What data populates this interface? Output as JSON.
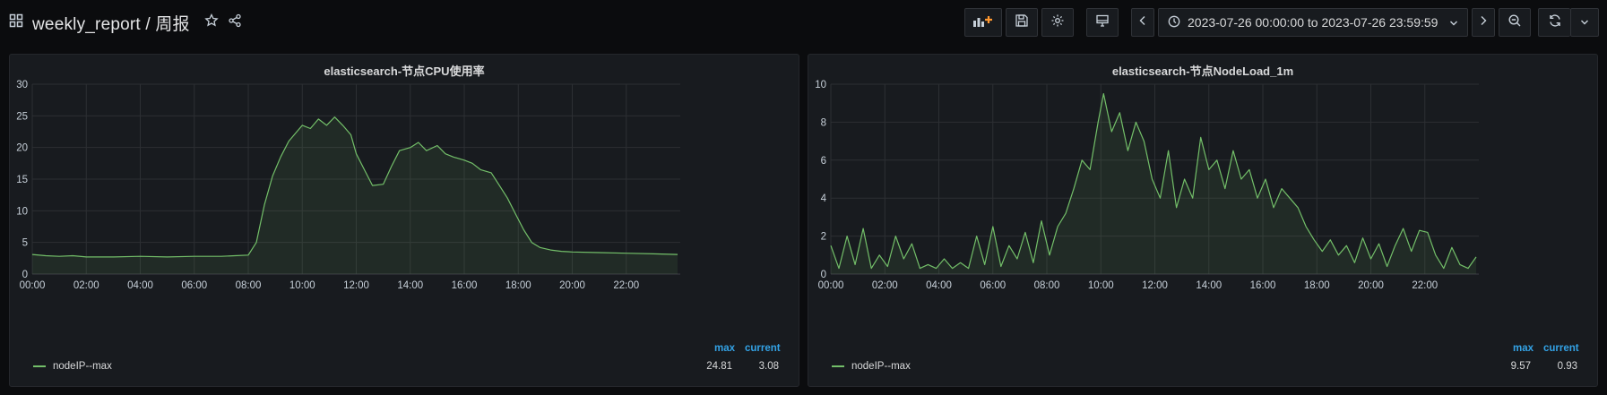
{
  "dashboard": {
    "title": "weekly_report / 周报",
    "time_range": "2023-07-26 00:00:00 to 2023-07-26 23:59:59"
  },
  "colors": {
    "series": "#73bf69",
    "legend_header": "#33a2e5",
    "grid": "#2c2f33"
  },
  "panels": [
    {
      "title": "elasticsearch-节点CPU使用率",
      "legend": {
        "headers": [
          "max",
          "current"
        ],
        "series": "nodeIP--max",
        "max": "24.81",
        "current": "3.08"
      }
    },
    {
      "title": "elasticsearch-节点NodeLoad_1m",
      "legend": {
        "headers": [
          "max",
          "current"
        ],
        "series": "nodeIP--max",
        "max": "9.57",
        "current": "0.93"
      }
    }
  ],
  "chart_data": [
    {
      "type": "area",
      "title": "elasticsearch-节点CPU使用率",
      "xlabel": "",
      "ylabel": "",
      "x_ticks": [
        "00:00",
        "02:00",
        "04:00",
        "06:00",
        "08:00",
        "10:00",
        "12:00",
        "14:00",
        "16:00",
        "18:00",
        "20:00",
        "22:00"
      ],
      "y_ticks": [
        0,
        5,
        10,
        15,
        20,
        25,
        30
      ],
      "xlim": [
        0,
        24
      ],
      "ylim": [
        0,
        30
      ],
      "grid": true,
      "series": [
        {
          "name": "nodeIP--max",
          "x": [
            0,
            0.5,
            1,
            1.5,
            2,
            3,
            4,
            5,
            6,
            7,
            7.5,
            8,
            8.3,
            8.6,
            8.9,
            9.2,
            9.5,
            9.8,
            10,
            10.3,
            10.6,
            10.9,
            11.2,
            11.5,
            11.8,
            12,
            12.3,
            12.6,
            13,
            13.3,
            13.6,
            14,
            14.3,
            14.6,
            15,
            15.3,
            15.6,
            16,
            16.3,
            16.6,
            17,
            17.3,
            17.6,
            17.9,
            18.2,
            18.5,
            18.8,
            19.2,
            19.6,
            20,
            21,
            22,
            23,
            23.9
          ],
          "values": [
            3.1,
            2.9,
            2.8,
            2.9,
            2.7,
            2.7,
            2.8,
            2.7,
            2.8,
            2.8,
            2.9,
            3.0,
            5.0,
            11.0,
            15.5,
            18.5,
            21.0,
            22.5,
            23.5,
            23.0,
            24.5,
            23.5,
            24.8,
            23.5,
            22.0,
            19.0,
            16.5,
            14.0,
            14.2,
            17.0,
            19.5,
            20.0,
            20.8,
            19.5,
            20.3,
            19.0,
            18.5,
            18.0,
            17.5,
            16.5,
            16.0,
            14.0,
            12.0,
            9.5,
            7.0,
            5.0,
            4.2,
            3.8,
            3.6,
            3.5,
            3.4,
            3.3,
            3.2,
            3.1
          ]
        }
      ]
    },
    {
      "type": "line",
      "title": "elasticsearch-节点NodeLoad_1m",
      "xlabel": "",
      "ylabel": "",
      "x_ticks": [
        "00:00",
        "02:00",
        "04:00",
        "06:00",
        "08:00",
        "10:00",
        "12:00",
        "14:00",
        "16:00",
        "18:00",
        "20:00",
        "22:00"
      ],
      "y_ticks": [
        0,
        2,
        4,
        6,
        8,
        10
      ],
      "xlim": [
        0,
        24
      ],
      "ylim": [
        0,
        10
      ],
      "grid": true,
      "series": [
        {
          "name": "nodeIP--max",
          "x": [
            0,
            0.3,
            0.6,
            0.9,
            1.2,
            1.5,
            1.8,
            2.1,
            2.4,
            2.7,
            3.0,
            3.3,
            3.6,
            3.9,
            4.2,
            4.5,
            4.8,
            5.1,
            5.4,
            5.7,
            6.0,
            6.3,
            6.6,
            6.9,
            7.2,
            7.5,
            7.8,
            8.1,
            8.4,
            8.7,
            9.0,
            9.3,
            9.6,
            9.9,
            10.1,
            10.4,
            10.7,
            11.0,
            11.3,
            11.6,
            11.9,
            12.2,
            12.5,
            12.8,
            13.1,
            13.4,
            13.7,
            14.0,
            14.3,
            14.6,
            14.9,
            15.2,
            15.5,
            15.8,
            16.1,
            16.4,
            16.7,
            17.0,
            17.3,
            17.6,
            17.9,
            18.2,
            18.5,
            18.8,
            19.1,
            19.4,
            19.7,
            20.0,
            20.3,
            20.6,
            20.9,
            21.2,
            21.5,
            21.8,
            22.1,
            22.4,
            22.7,
            23.0,
            23.3,
            23.6,
            23.9
          ],
          "values": [
            1.5,
            0.3,
            2.0,
            0.5,
            2.4,
            0.3,
            1.0,
            0.4,
            2.0,
            0.8,
            1.6,
            0.3,
            0.5,
            0.3,
            0.8,
            0.3,
            0.6,
            0.3,
            2.0,
            0.5,
            2.5,
            0.4,
            1.5,
            0.8,
            2.2,
            0.6,
            2.8,
            1.0,
            2.5,
            3.2,
            4.5,
            6.0,
            5.5,
            8.0,
            9.5,
            7.5,
            8.5,
            6.5,
            8.0,
            7.0,
            5.0,
            4.0,
            6.5,
            3.5,
            5.0,
            4.0,
            7.2,
            5.5,
            6.0,
            4.5,
            6.5,
            5.0,
            5.5,
            4.0,
            5.0,
            3.5,
            4.5,
            4.0,
            3.5,
            2.5,
            1.8,
            1.2,
            1.8,
            1.0,
            1.5,
            0.6,
            1.9,
            0.8,
            1.6,
            0.4,
            1.5,
            2.4,
            1.2,
            2.3,
            2.2,
            1.0,
            0.3,
            1.4,
            0.5,
            0.3,
            0.9
          ]
        }
      ]
    }
  ]
}
